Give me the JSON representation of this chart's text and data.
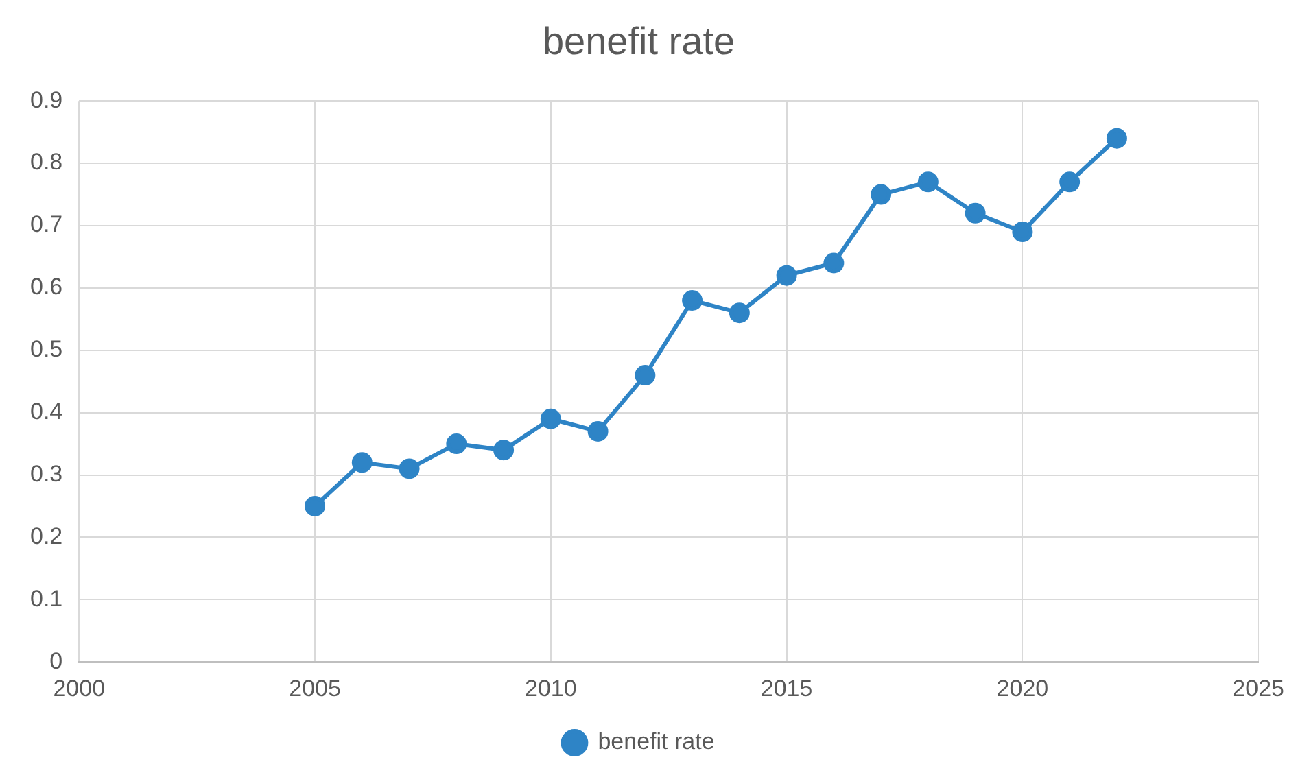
{
  "chart_data": {
    "type": "line",
    "title": "benefit rate",
    "x": [
      2005,
      2006,
      2007,
      2008,
      2009,
      2010,
      2011,
      2012,
      2013,
      2014,
      2015,
      2016,
      2017,
      2018,
      2019,
      2020,
      2021,
      2022
    ],
    "series": [
      {
        "name": "benefit rate",
        "color": "#2e84c6",
        "values": [
          0.25,
          0.32,
          0.31,
          0.35,
          0.34,
          0.39,
          0.37,
          0.46,
          0.58,
          0.56,
          0.62,
          0.64,
          0.75,
          0.77,
          0.72,
          0.69,
          0.77,
          0.84
        ]
      }
    ],
    "xlim": [
      2000,
      2025
    ],
    "xticks": [
      2000,
      2005,
      2010,
      2015,
      2020,
      2025
    ],
    "ylim": [
      0,
      0.9
    ],
    "yticks": [
      0,
      0.1,
      0.2,
      0.3,
      0.4,
      0.5,
      0.6,
      0.7,
      0.8,
      0.9
    ],
    "grid": true,
    "legend": "bottom",
    "marker": "circle",
    "line_style": "solid"
  }
}
